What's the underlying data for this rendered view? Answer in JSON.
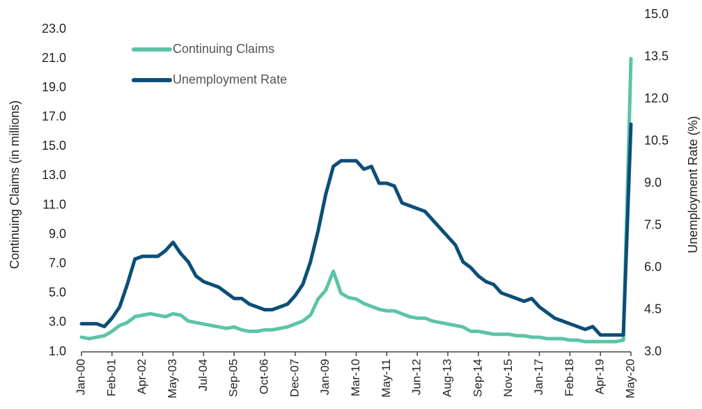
{
  "chart_data": {
    "type": "line",
    "categories": [
      "Jan-00",
      null,
      null,
      null,
      "Feb-01",
      null,
      null,
      null,
      "Apr-02",
      null,
      null,
      null,
      "May-03",
      null,
      null,
      null,
      "Jul-04",
      null,
      null,
      null,
      "Sep-05",
      null,
      null,
      null,
      "Oct-06",
      null,
      null,
      null,
      "Dec-07",
      null,
      null,
      null,
      "Jan-09",
      null,
      null,
      null,
      "Mar-10",
      null,
      null,
      null,
      "May-11",
      null,
      null,
      null,
      "Jun-12",
      null,
      null,
      null,
      "Aug-13",
      null,
      null,
      null,
      "Sep-14",
      null,
      null,
      null,
      "Nov-15",
      null,
      null,
      null,
      "Jan-17",
      null,
      null,
      null,
      "Feb-18",
      null,
      null,
      null,
      "Apr-19",
      null,
      null,
      null,
      "May-20"
    ],
    "series": [
      {
        "name": "Continuing Claims",
        "color": "#5cc4a7",
        "axis": "y",
        "values": [
          2.0,
          1.9,
          2.0,
          2.1,
          2.4,
          2.8,
          3.0,
          3.4,
          3.5,
          3.6,
          3.5,
          3.4,
          3.6,
          3.5,
          3.1,
          3.0,
          2.9,
          2.8,
          2.7,
          2.6,
          2.7,
          2.5,
          2.4,
          2.4,
          2.5,
          2.5,
          2.6,
          2.7,
          2.9,
          3.1,
          3.5,
          4.6,
          5.2,
          6.5,
          5.0,
          4.7,
          4.6,
          4.3,
          4.1,
          3.9,
          3.8,
          3.8,
          3.6,
          3.4,
          3.3,
          3.3,
          3.1,
          3.0,
          2.9,
          2.8,
          2.7,
          2.4,
          2.4,
          2.3,
          2.2,
          2.2,
          2.2,
          2.1,
          2.1,
          2.0,
          2.0,
          1.9,
          1.9,
          1.9,
          1.8,
          1.8,
          1.7,
          1.7,
          1.7,
          1.7,
          1.7,
          1.8,
          21.0
        ]
      },
      {
        "name": "Unemployment Rate",
        "color": "#0c4e78",
        "axis": "y2",
        "values": [
          4.0,
          4.0,
          4.0,
          3.9,
          4.2,
          4.6,
          5.4,
          6.3,
          6.4,
          6.4,
          6.4,
          6.6,
          6.9,
          6.5,
          6.2,
          5.7,
          5.5,
          5.4,
          5.3,
          5.1,
          4.9,
          4.9,
          4.7,
          4.6,
          4.5,
          4.5,
          4.6,
          4.7,
          5.0,
          5.4,
          6.2,
          7.3,
          8.6,
          9.6,
          9.8,
          9.8,
          9.8,
          9.5,
          9.6,
          9.0,
          9.0,
          8.9,
          8.3,
          8.2,
          8.1,
          8.0,
          7.7,
          7.4,
          7.1,
          6.8,
          6.2,
          6.0,
          5.7,
          5.5,
          5.4,
          5.1,
          5.0,
          4.9,
          4.8,
          4.9,
          4.6,
          4.4,
          4.2,
          4.1,
          4.0,
          3.9,
          3.8,
          3.9,
          3.6,
          3.6,
          3.6,
          3.6,
          11.1
        ]
      }
    ],
    "y_label": "Continuing Claims (in millions)",
    "y2_label": "Unemployment Rate (%)",
    "ylim": [
      1,
      24
    ],
    "yticks": [
      {
        "value": 1,
        "label": "1.0"
      },
      {
        "value": 3,
        "label": "3.0"
      },
      {
        "value": 5,
        "label": "5.0"
      },
      {
        "value": 7,
        "label": "7.0"
      },
      {
        "value": 9,
        "label": "9.0"
      },
      {
        "value": 11,
        "label": "11.0"
      },
      {
        "value": 13,
        "label": "13.0"
      },
      {
        "value": 15,
        "label": "15.0"
      },
      {
        "value": 17,
        "label": "17.0"
      },
      {
        "value": 19,
        "label": "19.0"
      },
      {
        "value": 21,
        "label": "21.0"
      },
      {
        "value": 23,
        "label": "23.0"
      }
    ],
    "y2lim": [
      3,
      15
    ],
    "y2ticks": [
      {
        "value": 3,
        "label": "3.0"
      },
      {
        "value": 4.5,
        "label": "4.5"
      },
      {
        "value": 6,
        "label": "6.0"
      },
      {
        "value": 7.5,
        "label": "7.5"
      },
      {
        "value": 9,
        "label": "9.0"
      },
      {
        "value": 10.5,
        "label": "10.5"
      },
      {
        "value": 12,
        "label": "12.0"
      },
      {
        "value": 13.5,
        "label": "13.5"
      },
      {
        "value": 15,
        "label": "15.0"
      }
    ],
    "grid": false,
    "legend": "top-left"
  }
}
